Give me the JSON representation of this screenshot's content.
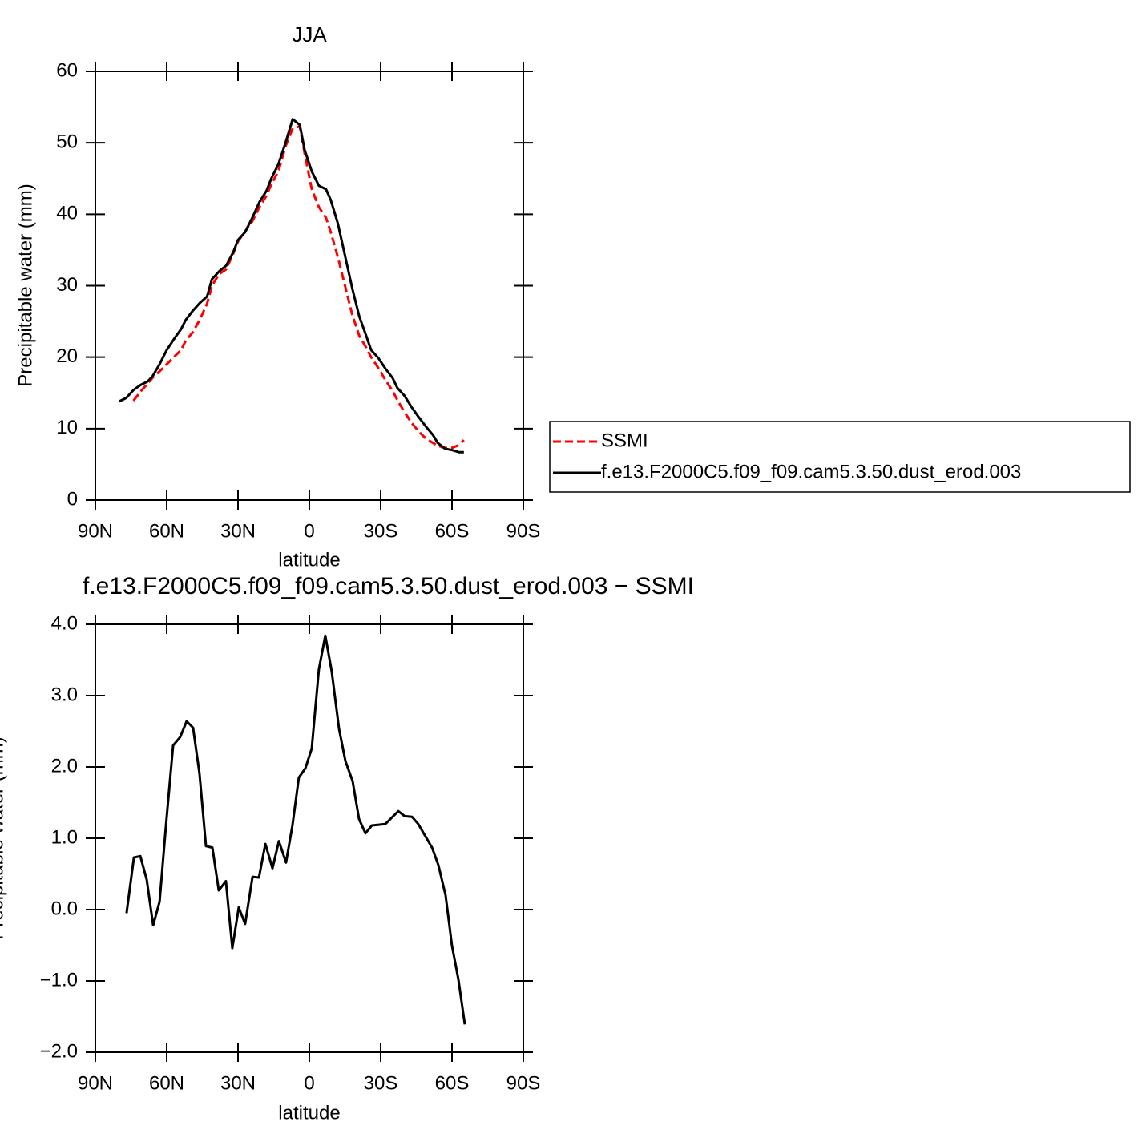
{
  "chart_data": [
    {
      "type": "line",
      "title": "JJA",
      "xlabel": "latitude",
      "ylabel": "Precipitable water (mm)",
      "x": [
        80,
        77,
        74,
        71,
        68,
        66,
        63,
        60,
        57,
        54,
        52,
        49,
        46,
        43,
        41,
        38,
        35,
        32,
        30,
        27,
        24,
        21,
        18,
        16,
        13,
        10,
        7,
        4,
        2,
        -1,
        -4,
        -7,
        -9,
        -12,
        -15,
        -18,
        -21,
        -24,
        -26,
        -29,
        -32,
        -35,
        -37,
        -40,
        -43,
        -46,
        -49,
        -52,
        -54,
        -57,
        -60,
        -63,
        -65
      ],
      "series": [
        {
          "name": "SSMI",
          "color": "#ff0000",
          "style": "dashed",
          "values": [
            null,
            null,
            13.9,
            15.2,
            16.3,
            17.1,
            18.0,
            19.0,
            20.0,
            21.0,
            22.3,
            23.5,
            25.3,
            27.5,
            30.0,
            31.6,
            32.3,
            34.5,
            36.2,
            37.6,
            39.0,
            41.0,
            42.6,
            44.2,
            46.0,
            49.5,
            52.0,
            52.3,
            48.5,
            43.5,
            41.0,
            39.5,
            37.5,
            34.0,
            30.0,
            26.0,
            23.0,
            21.3,
            20.0,
            18.5,
            16.8,
            15.3,
            14.0,
            12.3,
            10.8,
            9.6,
            8.6,
            8.0,
            7.6,
            7.3,
            7.3,
            7.7,
            8.4
          ]
        },
        {
          "name": "f.e13.F2000C5.f09_f09.cam5.3.50.dust_erod.003",
          "color": "#000000",
          "style": "solid",
          "values": [
            13.8,
            14.3,
            15.4,
            16.1,
            16.6,
            17.3,
            19.0,
            21.0,
            22.5,
            23.9,
            25.2,
            26.5,
            27.6,
            28.5,
            30.9,
            32.0,
            32.8,
            34.7,
            36.4,
            37.5,
            39.5,
            41.7,
            43.3,
            45.0,
            47.0,
            50.0,
            53.3,
            52.5,
            49.0,
            46.0,
            44.0,
            43.5,
            42.0,
            38.7,
            34.2,
            29.7,
            25.7,
            22.9,
            21.0,
            19.9,
            18.4,
            17.1,
            15.7,
            14.6,
            13.0,
            11.6,
            10.3,
            9.1,
            8.0,
            7.2,
            7.0,
            6.7,
            6.7
          ]
        }
      ],
      "xlim": [
        90,
        -90
      ],
      "xticks": [
        {
          "value": 90,
          "label": "90N"
        },
        {
          "value": 60,
          "label": "60N"
        },
        {
          "value": 30,
          "label": "30N"
        },
        0,
        {
          "value": -30,
          "label": "30S"
        },
        {
          "value": -60,
          "label": "60S"
        },
        {
          "value": -90,
          "label": "90S"
        }
      ],
      "ylim": [
        0,
        60
      ],
      "yticks": [
        0,
        10,
        20,
        30,
        40,
        50,
        60
      ],
      "legend": "right"
    },
    {
      "type": "line",
      "title": "f.e13.F2000C5.f09_f09.cam5.3.50.dust_erod.003 − SSMI",
      "xlabel": "latitude",
      "ylabel": "Precipitable water (mm)",
      "x": [
        76.9,
        73.8,
        71.1,
        68.4,
        65.7,
        63.0,
        60.3,
        57.3,
        54.3,
        51.6,
        48.9,
        46.2,
        43.5,
        40.8,
        38.1,
        35.1,
        32.4,
        29.7,
        27.0,
        23.9,
        21.2,
        18.5,
        15.5,
        12.8,
        9.8,
        7.1,
        4.4,
        1.7,
        -1.0,
        -4.0,
        -6.7,
        -9.4,
        -12.5,
        -15.2,
        -18.2,
        -20.9,
        -23.6,
        -26.3,
        -32.0,
        -34.7,
        -37.4,
        -40.1,
        -43.2,
        -45.8,
        -51.6,
        -54.3,
        -57.3,
        -60.0,
        -62.7,
        -65.4
      ],
      "color": "#000000",
      "values": [
        -0.05,
        0.73,
        0.75,
        0.42,
        -0.22,
        0.11,
        1.18,
        2.3,
        2.42,
        2.64,
        2.55,
        1.91,
        0.89,
        0.87,
        0.27,
        0.4,
        -0.54,
        0.03,
        -0.2,
        0.46,
        0.45,
        0.92,
        0.58,
        0.96,
        0.66,
        1.18,
        1.85,
        1.98,
        2.26,
        3.37,
        3.84,
        3.34,
        2.53,
        2.08,
        1.8,
        1.27,
        1.07,
        1.18,
        1.2,
        1.29,
        1.38,
        1.31,
        1.3,
        1.2,
        0.87,
        0.62,
        0.2,
        -0.51,
        -0.98,
        -1.61
      ],
      "xlim": [
        90,
        -90
      ],
      "xticks": [
        {
          "value": 90,
          "label": "90N"
        },
        {
          "value": 60,
          "label": "60N"
        },
        {
          "value": 30,
          "label": "30N"
        },
        0,
        {
          "value": -30,
          "label": "30S"
        },
        {
          "value": -60,
          "label": "60S"
        },
        {
          "value": -90,
          "label": "90S"
        }
      ],
      "ylim": [
        -2,
        4
      ],
      "yticks": [
        {
          "value": -2,
          "label": "−2.0"
        },
        {
          "value": -1,
          "label": "−1.0"
        },
        {
          "value": 0,
          "label": "0.0"
        },
        {
          "value": 1,
          "label": "1.0"
        },
        {
          "value": 2,
          "label": "2.0"
        },
        {
          "value": 3,
          "label": "3.0"
        },
        {
          "value": 4,
          "label": "4.0"
        }
      ]
    }
  ]
}
